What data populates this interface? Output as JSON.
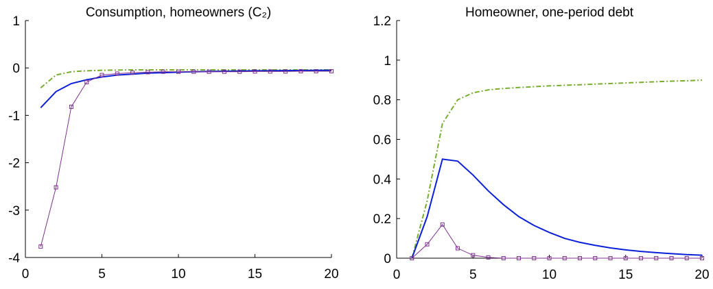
{
  "chart_data": [
    {
      "type": "line",
      "title": "Consumption, homeowners  (C₂)",
      "x": [
        1,
        2,
        3,
        4,
        5,
        6,
        7,
        8,
        9,
        10,
        11,
        12,
        13,
        14,
        15,
        16,
        17,
        18,
        19,
        20
      ],
      "xlim": [
        0,
        20
      ],
      "xticks": [
        0,
        5,
        10,
        15,
        20
      ],
      "ylim": [
        -4,
        1
      ],
      "yticks": [
        -4,
        -3,
        -2,
        -1,
        0,
        1
      ],
      "series": [
        {
          "color": "#77ac30",
          "style": "dashdot",
          "values": [
            -0.42,
            -0.15,
            -0.08,
            -0.06,
            -0.05,
            -0.045,
            -0.04,
            -0.04,
            -0.04,
            -0.04,
            -0.04,
            -0.04,
            -0.04,
            -0.04,
            -0.04,
            -0.04,
            -0.04,
            -0.04,
            -0.04,
            -0.04
          ]
        },
        {
          "color": "#0a1fd8",
          "style": "solid",
          "values": [
            -0.84,
            -0.5,
            -0.33,
            -0.25,
            -0.19,
            -0.15,
            -0.13,
            -0.11,
            -0.1,
            -0.09,
            -0.08,
            -0.075,
            -0.07,
            -0.065,
            -0.06,
            -0.06,
            -0.055,
            -0.055,
            -0.05,
            -0.05
          ]
        },
        {
          "color": "#7e2f8e",
          "style": "marker",
          "values": [
            -3.77,
            -2.52,
            -0.82,
            -0.3,
            -0.15,
            -0.12,
            -0.1,
            -0.09,
            -0.08,
            -0.08,
            -0.08,
            -0.08,
            -0.08,
            -0.08,
            -0.075,
            -0.075,
            -0.075,
            -0.07,
            -0.07,
            -0.07
          ]
        }
      ]
    },
    {
      "type": "line",
      "title": "Homeowner, one-period debt",
      "x": [
        1,
        2,
        3,
        4,
        5,
        6,
        7,
        8,
        9,
        10,
        11,
        12,
        13,
        14,
        15,
        16,
        17,
        18,
        19,
        20
      ],
      "xlim": [
        0,
        20
      ],
      "xticks": [
        0,
        5,
        10,
        15,
        20
      ],
      "ylim": [
        0,
        1.2
      ],
      "yticks": [
        0,
        0.2,
        0.4,
        0.6,
        0.8,
        1,
        1.2
      ],
      "series": [
        {
          "color": "#77ac30",
          "style": "dashdot",
          "values": [
            0,
            0.29,
            0.68,
            0.8,
            0.835,
            0.85,
            0.857,
            0.862,
            0.866,
            0.87,
            0.873,
            0.876,
            0.879,
            0.882,
            0.885,
            0.888,
            0.891,
            0.894,
            0.896,
            0.899
          ]
        },
        {
          "color": "#0a1fd8",
          "style": "solid",
          "values": [
            0,
            0.21,
            0.5,
            0.49,
            0.42,
            0.34,
            0.27,
            0.21,
            0.165,
            0.13,
            0.1,
            0.08,
            0.065,
            0.052,
            0.042,
            0.034,
            0.028,
            0.023,
            0.018,
            0.015
          ]
        },
        {
          "color": "#7e2f8e",
          "style": "marker",
          "values": [
            0,
            0.07,
            0.17,
            0.05,
            0.015,
            0.004,
            0,
            0,
            0,
            0,
            0,
            0,
            0,
            0,
            0,
            0,
            0,
            0,
            0,
            0
          ]
        }
      ]
    }
  ]
}
